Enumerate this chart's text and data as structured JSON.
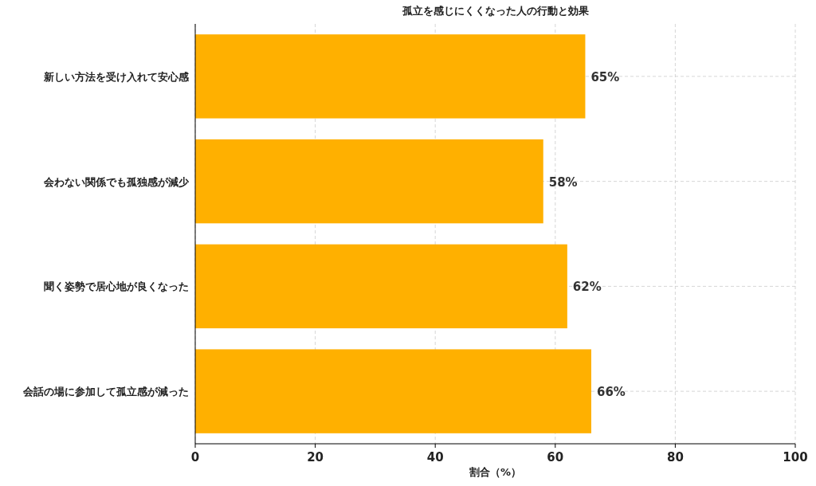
{
  "chart_data": {
    "type": "bar",
    "orientation": "horizontal",
    "title": "孤立を感じにくくなった人の行動と効果",
    "xlabel": "割合（%）",
    "categories": [
      "新しい方法を受け入れて安心感",
      "会わない関係でも孤独感が減少",
      "聞く姿勢で居心地が良くなった",
      "会話の場に参加して孤立感が減った"
    ],
    "values": [
      65,
      58,
      62,
      66
    ],
    "value_labels": [
      "65%",
      "58%",
      "62%",
      "66%"
    ],
    "color": "#ffb000",
    "xlim": [
      0,
      100
    ],
    "xticks": [
      0,
      20,
      40,
      60,
      80,
      100
    ],
    "grid": true
  }
}
